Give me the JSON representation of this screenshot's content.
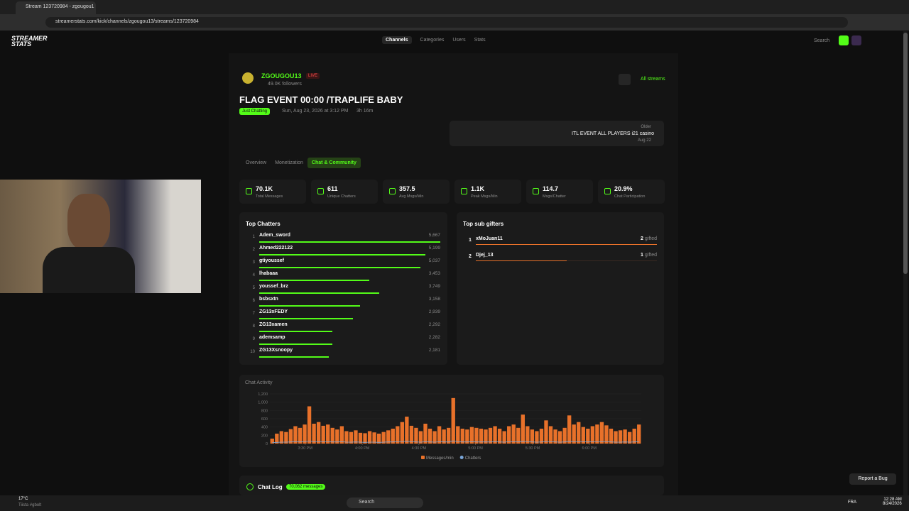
{
  "browser": {
    "tab_title": "Stream 123720984 - zgougou1",
    "url": "streamerstats.com/kick/channels/zgougou13/streams/123720984"
  },
  "nav": {
    "logo_top": "STREAMER",
    "logo_bottom": "STATS",
    "links": [
      "Channels",
      "Categories",
      "Users",
      "Stats"
    ],
    "search": "Search"
  },
  "header": {
    "channel": "ZGOUGOU13",
    "live": "LIVE",
    "followers": "49.0K followers",
    "all_streams": "All streams",
    "title": "FLAG EVENT 00:00 /TRAPLIFE BABY",
    "category": "Just Chatting",
    "date": "Sun, Aug 23, 2026 at 3:12 PM",
    "duration": "3h 16m"
  },
  "older": {
    "label": "Older",
    "title": "ITL EVENT ALL PLAYERS i21 casino",
    "date": "Aug 22"
  },
  "tabs": [
    "Overview",
    "Monetization",
    "Chat & Community"
  ],
  "stats": [
    {
      "value": "70.1K",
      "label": "Total Messages"
    },
    {
      "value": "611",
      "label": "Unique Chatters"
    },
    {
      "value": "357.5",
      "label": "Avg Msgs/Min"
    },
    {
      "value": "1.1K",
      "label": "Peak Msgs/Min"
    },
    {
      "value": "114.7",
      "label": "Msgs/Chatter"
    },
    {
      "value": "20.9%",
      "label": "Chat Participation"
    }
  ],
  "top_chatters": {
    "title": "Top Chatters",
    "rows": [
      {
        "rank": 1,
        "name": "Adem_sword",
        "messages": {
          "value": 5667,
          "label": "5,667"
        }
      },
      {
        "rank": 2,
        "name": "Ahmed222122",
        "messages": {
          "value": 5199,
          "label": "5,199"
        }
      },
      {
        "rank": 3,
        "name": "gtiyoussef",
        "messages": {
          "value": 5037,
          "label": "5,037"
        }
      },
      {
        "rank": 4,
        "name": "lhabaaa",
        "messages": {
          "value": 3453,
          "label": "3,453"
        }
      },
      {
        "rank": 5,
        "name": "youssef_brz",
        "messages": {
          "value": 3749,
          "label": "3,749"
        }
      },
      {
        "rank": 6,
        "name": "bsbsxtn",
        "messages": {
          "value": 3158,
          "label": "3,158"
        }
      },
      {
        "rank": 7,
        "name": "ZG13xFEDY",
        "messages": {
          "value": 2939,
          "label": "2,939"
        }
      },
      {
        "rank": 8,
        "name": "ZG13xamen",
        "messages": {
          "value": 2292,
          "label": "2,292"
        }
      },
      {
        "rank": 9,
        "name": "ademsamp",
        "messages": {
          "value": 2282,
          "label": "2,282"
        }
      },
      {
        "rank": 10,
        "name": "ZG13Xsnoopy",
        "messages": {
          "value": 2181,
          "label": "2,181"
        }
      }
    ]
  },
  "sub_gifters": {
    "title": "Top sub gifters",
    "unit": "gifted",
    "rows": [
      {
        "rank": 1,
        "name": "xMoJuan11",
        "gifted": 2
      },
      {
        "rank": 2,
        "name": "Djej_13",
        "gifted": 1
      }
    ]
  },
  "chat_activity": {
    "type": "bar",
    "title": "Chat Activity",
    "xlim": [
      0,
      80
    ],
    "xticks": [
      {
        "value": 7.6,
        "label": "3:30 PM"
      },
      {
        "value": 19.9,
        "label": "4:00 PM"
      },
      {
        "value": 32.1,
        "label": "4:30 PM"
      },
      {
        "value": 44.3,
        "label": "5:00 PM"
      },
      {
        "value": 56.6,
        "label": "5:30 PM"
      },
      {
        "value": 68.8,
        "label": "6:00 PM"
      }
    ],
    "ylim": [
      0,
      1200
    ],
    "yticks": [
      0,
      200,
      400,
      600,
      800,
      {
        "value": 1000,
        "label": "1,000"
      },
      {
        "value": 1200,
        "label": "1,200"
      }
    ],
    "series": [
      {
        "name": "Messages/min",
        "color": "#e8712a",
        "values": [
          120,
          240,
          300,
          280,
          350,
          420,
          380,
          460,
          900,
          480,
          520,
          430,
          460,
          380,
          340,
          420,
          300,
          280,
          320,
          260,
          250,
          300,
          270,
          240,
          280,
          320,
          360,
          420,
          520,
          650,
          430,
          380,
          300,
          480,
          360,
          300,
          420,
          340,
          380,
          1100,
          420,
          360,
          340,
          400,
          380,
          360,
          340,
          380,
          420,
          360,
          300,
          420,
          460,
          380,
          700,
          420,
          340,
          300,
          360,
          560,
          420,
          340,
          300,
          380,
          680,
          460,
          520,
          400,
          360,
          420,
          460,
          520,
          440,
          360,
          300,
          320,
          340,
          280,
          360,
          460
        ]
      },
      {
        "name": "Chatters",
        "color": "#7aa6d8",
        "values": [
          20,
          30,
          35,
          35,
          40,
          45,
          40,
          45,
          60,
          45,
          50,
          45,
          45,
          40,
          40,
          45,
          35,
          35,
          40,
          35,
          30,
          35,
          35,
          30,
          35,
          40,
          40,
          45,
          50,
          55,
          45,
          40,
          35,
          45,
          40,
          35,
          45,
          40,
          40,
          65,
          45,
          40,
          40,
          45,
          40,
          40,
          40,
          40,
          45,
          40,
          35,
          45,
          45,
          40,
          55,
          45,
          40,
          35,
          40,
          50,
          45,
          40,
          35,
          40,
          55,
          45,
          50,
          45,
          40,
          45,
          45,
          50,
          45,
          40,
          35,
          35,
          40,
          35,
          40,
          45
        ]
      }
    ]
  },
  "chat_log": {
    "title": "Chat Log",
    "badge": "70,062 messages"
  },
  "report": "Report a Bug",
  "taskbar": {
    "temp": "17°C",
    "weather": "Tiista #gbolt",
    "search": "Search",
    "lang": "FRA",
    "time": "12:28 AM",
    "date": "8/24/2026"
  }
}
